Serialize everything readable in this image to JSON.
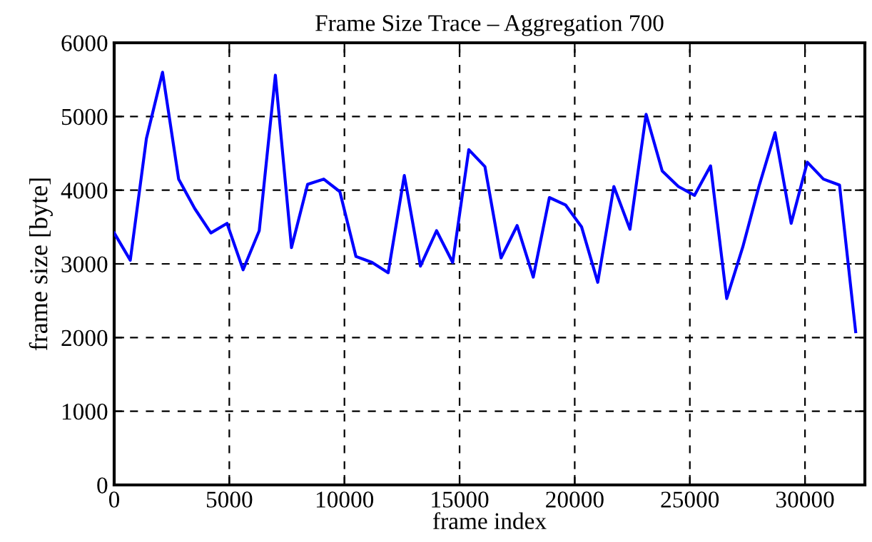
{
  "chart_data": {
    "type": "line",
    "title": "Frame Size Trace – Aggregation 700",
    "xlabel": "frame index",
    "ylabel": "frame size [byte]",
    "x": [
      0,
      700,
      1400,
      2100,
      2800,
      3500,
      4200,
      4900,
      5600,
      6300,
      7000,
      7700,
      8400,
      9100,
      9800,
      10500,
      11200,
      11900,
      12600,
      13300,
      14000,
      14700,
      15400,
      16100,
      16800,
      17500,
      18200,
      18900,
      19600,
      20300,
      21000,
      21700,
      22400,
      23100,
      23800,
      24500,
      25200,
      25900,
      26600,
      27300,
      28000,
      28700,
      29400,
      30100,
      30800,
      31500,
      32200
    ],
    "series": [
      {
        "color": "#0000ff",
        "values": [
          3420,
          3050,
          4700,
          5600,
          4150,
          3750,
          3420,
          3550,
          2920,
          3450,
          5560,
          3220,
          4080,
          4150,
          3980,
          3100,
          3020,
          2880,
          4200,
          2970,
          3450,
          3020,
          4550,
          4320,
          3080,
          3520,
          2820,
          3900,
          3800,
          3500,
          2750,
          4050,
          3470,
          5030,
          4260,
          4050,
          3930,
          4330,
          2530,
          3230,
          4050,
          4780,
          3550,
          4380,
          4150,
          4070,
          2080
        ]
      }
    ],
    "xlim": [
      0,
      32600
    ],
    "ylim": [
      0,
      6000
    ],
    "xticks": [
      0,
      5000,
      10000,
      15000,
      20000,
      25000,
      30000
    ],
    "yticks": [
      0,
      1000,
      2000,
      3000,
      4000,
      5000,
      6000
    ],
    "grid": true,
    "line_style": "solid",
    "marker": "none"
  }
}
